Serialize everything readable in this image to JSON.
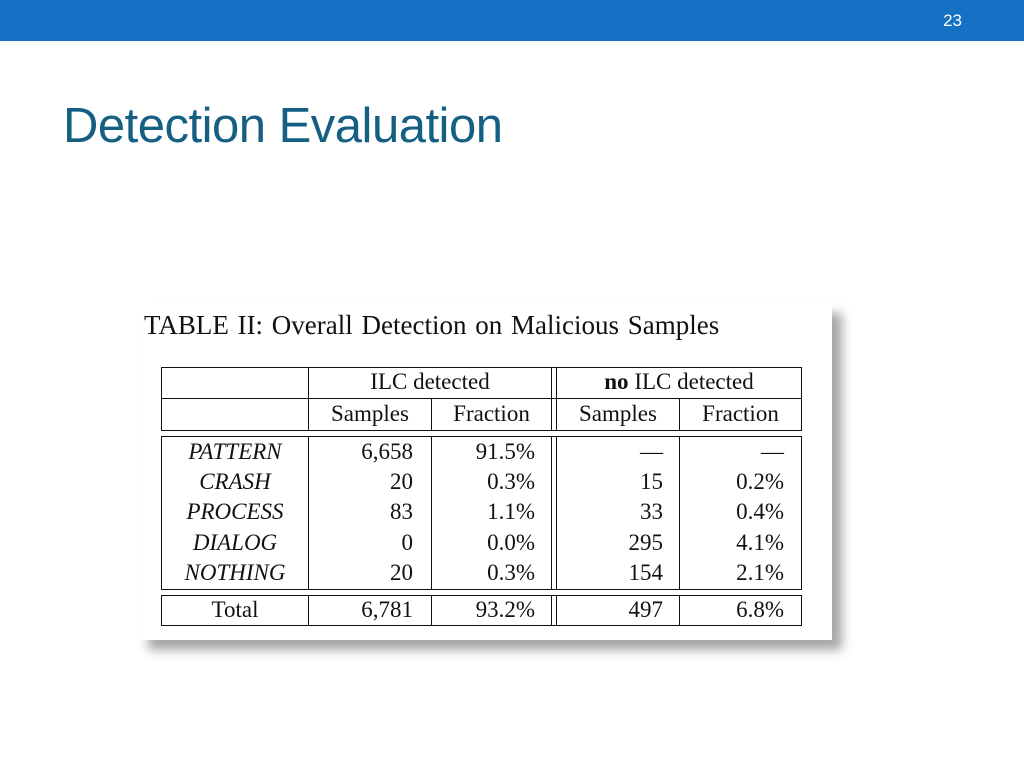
{
  "slide": {
    "number": "23",
    "title": "Detection Evaluation"
  },
  "table": {
    "caption": "TABLE II: Overall Detection on Malicious Samples",
    "group_headers": {
      "left": "ILC detected",
      "right_bold": "no",
      "right_rest": " ILC detected"
    },
    "sub_headers": [
      "Samples",
      "Fraction",
      "Samples",
      "Fraction"
    ],
    "rows": [
      {
        "label": "PATTERN",
        "ilc_samples": "6,658",
        "ilc_fraction": "91.5%",
        "noilc_samples": "—",
        "noilc_fraction": "—"
      },
      {
        "label": "CRASH",
        "ilc_samples": "20",
        "ilc_fraction": "0.3%",
        "noilc_samples": "15",
        "noilc_fraction": "0.2%"
      },
      {
        "label": "PROCESS",
        "ilc_samples": "83",
        "ilc_fraction": "1.1%",
        "noilc_samples": "33",
        "noilc_fraction": "0.4%"
      },
      {
        "label": "DIALOG",
        "ilc_samples": "0",
        "ilc_fraction": "0.0%",
        "noilc_samples": "295",
        "noilc_fraction": "4.1%"
      },
      {
        "label": "NOTHING",
        "ilc_samples": "20",
        "ilc_fraction": "0.3%",
        "noilc_samples": "154",
        "noilc_fraction": "2.1%"
      }
    ],
    "total": {
      "label": "Total",
      "ilc_samples": "6,781",
      "ilc_fraction": "93.2%",
      "noilc_samples": "497",
      "noilc_fraction": "6.8%"
    }
  },
  "colors": {
    "header_bar": "#1670c4",
    "title": "#156082"
  }
}
